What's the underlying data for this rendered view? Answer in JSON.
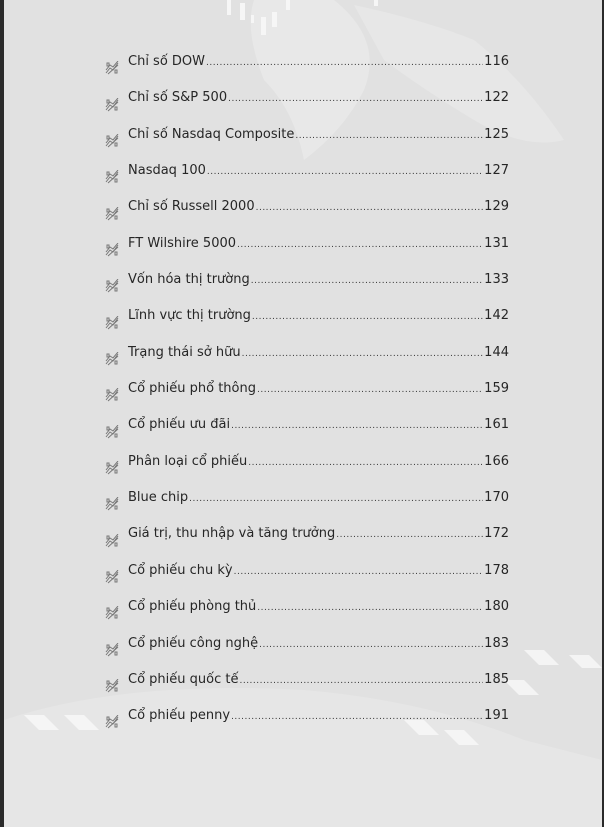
{
  "toc": {
    "bullet_icon": "stock-chart-icon",
    "items": [
      {
        "title": "Chỉ số DOW",
        "page": "116"
      },
      {
        "title": "Chỉ số S&P 500",
        "page": "122"
      },
      {
        "title": "Chỉ số Nasdaq Composite",
        "page": "125"
      },
      {
        "title": "Nasdaq 100",
        "page": "127"
      },
      {
        "title": "Chỉ số Russell 2000",
        "page": "129"
      },
      {
        "title": "FT Wilshire 5000",
        "page": "131"
      },
      {
        "title": "Vốn hóa thị trường",
        "page": "133"
      },
      {
        "title": "Lĩnh vực thị trường",
        "page": "142"
      },
      {
        "title": "Trạng thái sở hữu",
        "page": "144"
      },
      {
        "title": "Cổ phiếu phổ thông",
        "page": "159"
      },
      {
        "title": "Cổ phiếu ưu đãi",
        "page": "161"
      },
      {
        "title": "Phân loại cổ phiếu",
        "page": "166"
      },
      {
        "title": "Blue chip",
        "page": "170"
      },
      {
        "title": "Giá trị, thu nhập và tăng trưởng",
        "page": "172"
      },
      {
        "title": "Cổ phiếu chu kỳ",
        "page": "178"
      },
      {
        "title": "Cổ phiếu phòng thủ",
        "page": "180"
      },
      {
        "title": "Cổ phiếu công nghệ",
        "page": "183"
      },
      {
        "title": "Cổ phiếu quốc tế",
        "page": "185"
      },
      {
        "title": "Cổ phiếu penny",
        "page": "191"
      }
    ]
  }
}
